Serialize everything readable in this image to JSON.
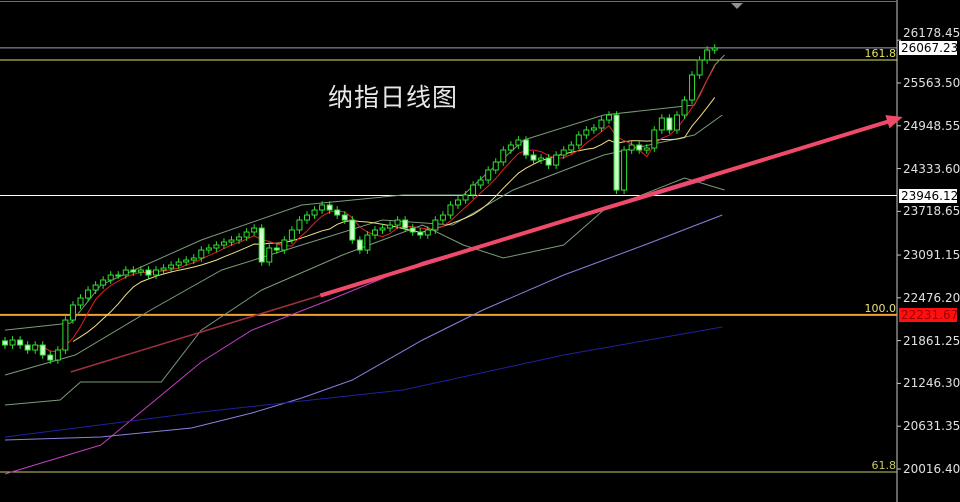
{
  "chart_data": {
    "type": "candlestick",
    "title": "纳指日线图",
    "yaxis": {
      "ticks": [
        "26178.45",
        "25563.50",
        "24948.55",
        "24333.60",
        "23718.65",
        "23091.15",
        "22476.20",
        "21861.25",
        "21246.30",
        "20631.35",
        "20016.40"
      ],
      "tick_values": [
        26178.45,
        25563.5,
        24948.55,
        24333.6,
        23718.65,
        23091.15,
        22476.2,
        21861.25,
        21246.3,
        20631.35,
        20016.4
      ],
      "position": "right"
    },
    "close": [
      21798,
      21870,
      21798,
      21726,
      21798,
      21654,
      21582,
      21726,
      22157,
      22373,
      22473,
      22588,
      22660,
      22732,
      22804,
      22804,
      22876,
      22847,
      22876,
      22804,
      22876,
      22904,
      22947,
      22991,
      23019,
      23048,
      23163,
      23192,
      23235,
      23278,
      23307,
      23350,
      23422,
      23479,
      22991,
      23192,
      23163,
      23307,
      23451,
      23594,
      23666,
      23738,
      23810,
      23738,
      23666,
      23594,
      23307,
      23163,
      23379,
      23451,
      23479,
      23522,
      23594,
      23479,
      23422,
      23379,
      23451,
      23594,
      23666,
      23810,
      23882,
      23954,
      24097,
      24169,
      24313,
      24428,
      24600,
      24672,
      24744,
      24528,
      24456,
      24485,
      24384,
      24528,
      24600,
      24672,
      24816,
      24888,
      24917,
      25031,
      25103,
      24025,
      24600,
      24672,
      24600,
      24629,
      24888,
      25060,
      24888,
      25103,
      25318,
      25678,
      25893,
      26037,
      26066
    ],
    "indicators": [
      {
        "kind": "bollinger-upper",
        "color": "#7a9a7a",
        "points": [
          [
            0,
            22013
          ],
          [
            8.7,
            22114
          ],
          [
            12.7,
            22660
          ],
          [
            26,
            23307
          ],
          [
            39.3,
            23810
          ],
          [
            52.7,
            23954
          ],
          [
            60.7,
            23954
          ],
          [
            68.7,
            24744
          ],
          [
            79.3,
            25103
          ],
          [
            91.3,
            25247
          ],
          [
            94,
            25821
          ],
          [
            95.3,
            25965
          ]
        ]
      },
      {
        "kind": "bollinger-middle",
        "color": "#7a9a7a",
        "points": [
          [
            0,
            21367
          ],
          [
            9.3,
            21654
          ],
          [
            19.3,
            22301
          ],
          [
            28.7,
            22876
          ],
          [
            39.3,
            23235
          ],
          [
            50,
            23594
          ],
          [
            59.3,
            23522
          ],
          [
            67.3,
            24025
          ],
          [
            79.3,
            24528
          ],
          [
            91.3,
            24816
          ],
          [
            95,
            25103
          ]
        ]
      },
      {
        "kind": "bollinger-lower",
        "color": "#7a9a7a",
        "points": [
          [
            0,
            20936
          ],
          [
            7.3,
            21008
          ],
          [
            10,
            21266
          ],
          [
            20.7,
            21266
          ],
          [
            26,
            22013
          ],
          [
            34,
            22588
          ],
          [
            44.7,
            23091
          ],
          [
            55.3,
            23522
          ],
          [
            60.7,
            23235
          ],
          [
            66,
            23048
          ],
          [
            74,
            23235
          ],
          [
            79.3,
            23738
          ],
          [
            90,
            24198
          ],
          [
            95.3,
            24025
          ]
        ]
      },
      {
        "kind": "moving-average",
        "color": "#c040c0",
        "points": [
          [
            0,
            19944
          ],
          [
            12.7,
            20361
          ],
          [
            20.7,
            21079
          ],
          [
            26,
            21554
          ],
          [
            32.7,
            22013
          ],
          [
            43.3,
            22459
          ],
          [
            55.3,
            22990
          ],
          [
            74,
            23565
          ],
          [
            92.7,
            24169
          ]
        ]
      },
      {
        "kind": "moving-average",
        "color": "#8a80e0",
        "points": [
          [
            0,
            20433
          ],
          [
            12.7,
            20476
          ],
          [
            24.7,
            20605
          ],
          [
            32.7,
            20821
          ],
          [
            39.3,
            21036
          ],
          [
            46,
            21295
          ],
          [
            55.3,
            21870
          ],
          [
            63.3,
            22301
          ],
          [
            74,
            22804
          ],
          [
            84.7,
            23235
          ],
          [
            95,
            23666
          ]
        ]
      },
      {
        "kind": "moving-average",
        "color": "#2020a0",
        "points": [
          [
            0,
            20476
          ],
          [
            26,
            20835
          ],
          [
            52.7,
            21151
          ],
          [
            74,
            21654
          ],
          [
            95,
            22057
          ]
        ]
      }
    ],
    "ma_fast_color": "#e02020",
    "ma_slow_color": "#f0e080",
    "trendline": {
      "color": "#f04a6a",
      "points": [
        [
          8.7,
          21410
        ],
        [
          118.9,
          25074
        ]
      ],
      "arrow": true
    },
    "levels": [
      {
        "price": 26067.23,
        "label": "26067.23",
        "color": "#a0a0b0",
        "label_bg": "#ffffff",
        "label_fg": "#000000"
      },
      {
        "price": 25893,
        "fib": "161.8",
        "color": "#e0e060"
      },
      {
        "price": 23946.12,
        "label": "23946.12",
        "color": "#ffffff",
        "label_bg": "#ffffff",
        "label_fg": "#000000"
      },
      {
        "price": 22231.67,
        "label": "22231.67",
        "fib": "100.0",
        "color": "#f0a030",
        "label_bg": "#ff1010",
        "label_fg": "#a00000"
      },
      {
        "price": 19973,
        "fib": "61.8",
        "color": "#c8c864"
      }
    ],
    "bull_color": "#30e030",
    "bear_fill": "#d0ffd0",
    "grid": false
  }
}
